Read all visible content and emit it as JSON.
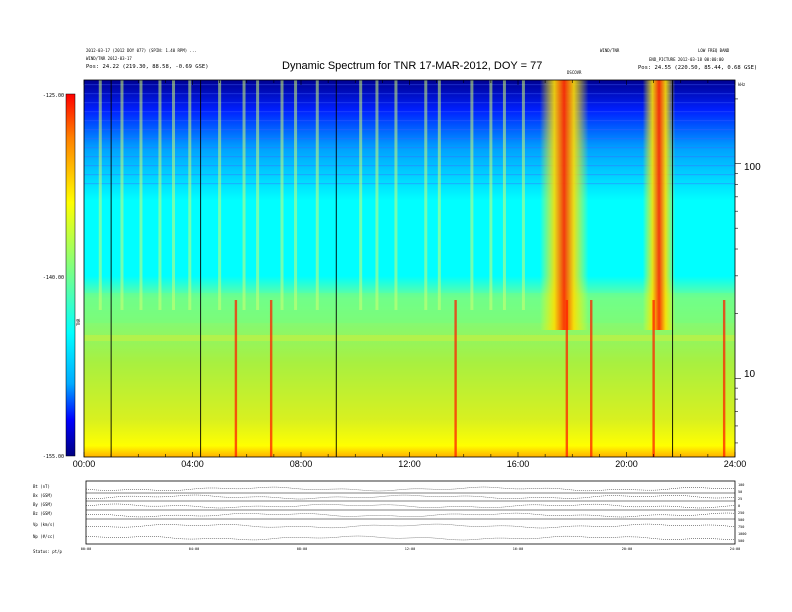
{
  "header": {
    "title": "Dynamic Spectrum for TNR 17-MAR-2012, DOY = 77",
    "left_info_1": "2012-03-17 (2012 DOY 077) (SPIN: 1.40 RPM) ...",
    "left_info_2": "WIND/TNR 2012-03-17",
    "left_info_3": "Pos:   24.22 (219.30, 88.58, -0.69 GSE)",
    "right_info_1": "WIND/TNR",
    "right_info_1b": "LOW FREQ BAND",
    "right_info_2": "END_PICTURE 2012-03-18 00:00:00",
    "right_info_3": "Pos:   24.55 (220.50, 85.44, 0.68 GSE)",
    "right_small": "kHz",
    "top_marker": "DSCOVR"
  },
  "colorbar": {
    "label": "TNR",
    "ticks": [
      "-125.00",
      "-140.00",
      "-155.00"
    ],
    "colors": [
      "#000080",
      "#0000ff",
      "#00aaff",
      "#00ffff",
      "#80ff80",
      "#ffff00",
      "#ff8000",
      "#ff0000"
    ]
  },
  "axes": {
    "x_ticks": [
      "00:00",
      "04:00",
      "08:00",
      "12:00",
      "16:00",
      "20:00",
      "24:00"
    ],
    "y_ticks_right": [
      "100",
      "10"
    ]
  },
  "bottom_panel": {
    "labels": [
      "Bt (nT)",
      "Bx (GSM)",
      "By (GSM)",
      "Bz (GSM)",
      "Vp (km/s)",
      "Np (#/cc)"
    ],
    "right_labels": [
      "100",
      "50",
      "25",
      "0",
      "250",
      "500",
      "750",
      "1000",
      "500"
    ],
    "x_ticks": [
      "00:00",
      "04:00",
      "08:00",
      "12:00",
      "16:00",
      "20:00",
      "24:00"
    ],
    "footer": "Status: pt/p",
    "line_color": "#1a1a1a"
  },
  "chart_data": {
    "type": "heatmap",
    "title": "Dynamic Spectrum for TNR 17-MAR-2012, DOY = 77",
    "xlabel": "",
    "ylabel": "",
    "x_range_hours": [
      0,
      24
    ],
    "y_axis": "log",
    "y_ticks": [
      10,
      100
    ],
    "color_scale": [
      -155,
      -125
    ],
    "colorbar_ticks": [
      -125,
      -140,
      -155
    ],
    "vertical_markers_hours": [
      1.0,
      4.3,
      9.3,
      21.7
    ],
    "bursts_hours": [
      5.6,
      6.9,
      13.7,
      17.8,
      18.7,
      21.0,
      23.6
    ],
    "bursts": [
      {
        "start_hour": 16.8,
        "end_hour": 18.6
      },
      {
        "start_hour": 20.6,
        "end_hour": 21.8
      }
    ]
  }
}
